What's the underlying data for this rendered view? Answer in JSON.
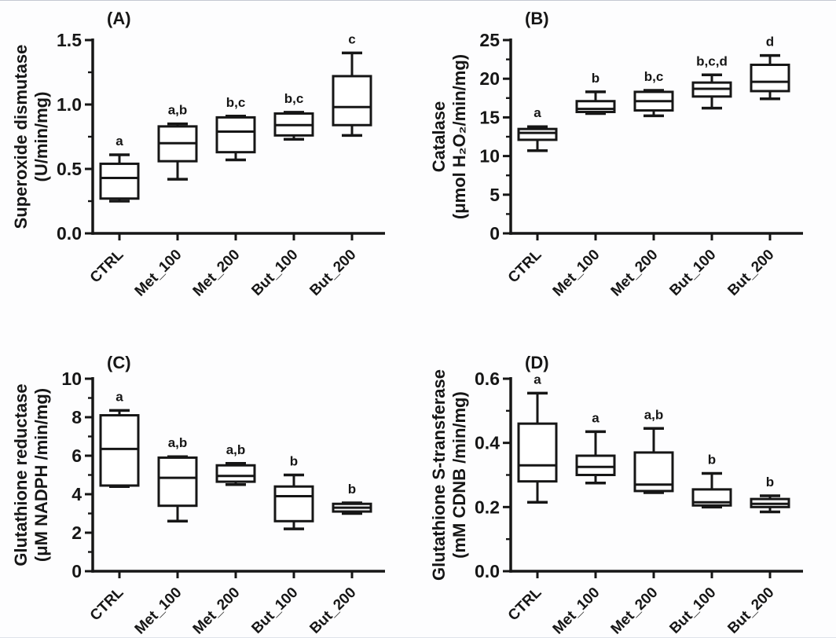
{
  "figure": {
    "background": "#fdfdfe",
    "ink_color": "#161616",
    "description": "Four-panel box plot figure of antioxidant enzyme activities"
  },
  "chart_data": [
    {
      "type": "box",
      "panel_label": "(A)",
      "ylabel_line1": "Superoxide dismutase",
      "ylabel_line2": "(U/min/mg)",
      "ylim": [
        0,
        1.5
      ],
      "yticks": [
        0,
        0.5,
        1.0,
        1.5
      ],
      "ytick_labels": [
        "0.0",
        "0.5",
        "1.0",
        "1.5"
      ],
      "minor_step": 0.25,
      "categories": [
        "CTRL",
        "Met_100",
        "Met_200",
        "But_100",
        "But_200"
      ],
      "series": [
        {
          "category": "CTRL",
          "min": 0.25,
          "q1": 0.27,
          "median": 0.43,
          "q3": 0.54,
          "max": 0.61,
          "sig": "a"
        },
        {
          "category": "Met_100",
          "min": 0.42,
          "q1": 0.56,
          "median": 0.7,
          "q3": 0.83,
          "max": 0.85,
          "sig": "a,b"
        },
        {
          "category": "Met_200",
          "min": 0.57,
          "q1": 0.63,
          "median": 0.79,
          "q3": 0.9,
          "max": 0.91,
          "sig": "b,c"
        },
        {
          "category": "But_100",
          "min": 0.73,
          "q1": 0.76,
          "median": 0.84,
          "q3": 0.93,
          "max": 0.94,
          "sig": "b,c"
        },
        {
          "category": "But_200",
          "min": 0.76,
          "q1": 0.84,
          "median": 0.98,
          "q3": 1.22,
          "max": 1.4,
          "sig": "c"
        }
      ]
    },
    {
      "type": "box",
      "panel_label": "(B)",
      "ylabel_line1": "Catalase",
      "ylabel_line2": "(μmol H₂O₂/min/mg)",
      "ylim": [
        0,
        25
      ],
      "yticks": [
        0,
        5,
        10,
        15,
        20,
        25
      ],
      "ytick_labels": [
        "0",
        "5",
        "10",
        "15",
        "20",
        "25"
      ],
      "minor_step": 2.5,
      "categories": [
        "CTRL",
        "Met_100",
        "Met_200",
        "But_100",
        "But_200"
      ],
      "series": [
        {
          "category": "CTRL",
          "min": 10.7,
          "q1": 12.1,
          "median": 13.0,
          "q3": 13.5,
          "max": 13.8,
          "sig": "a"
        },
        {
          "category": "Met_100",
          "min": 15.5,
          "q1": 15.7,
          "median": 16.1,
          "q3": 17.1,
          "max": 18.3,
          "sig": "b"
        },
        {
          "category": "Met_200",
          "min": 15.2,
          "q1": 15.9,
          "median": 17.1,
          "q3": 18.3,
          "max": 18.5,
          "sig": "b,c"
        },
        {
          "category": "But_100",
          "min": 16.2,
          "q1": 17.7,
          "median": 18.7,
          "q3": 19.5,
          "max": 20.5,
          "sig": "b,c,d"
        },
        {
          "category": "But_200",
          "min": 17.4,
          "q1": 18.4,
          "median": 19.6,
          "q3": 21.8,
          "max": 23.0,
          "sig": "d"
        }
      ]
    },
    {
      "type": "box",
      "panel_label": "(C)",
      "ylabel_line1": "Glutathione reductase",
      "ylabel_line2": "(μM NADPH /min/mg)",
      "ylim": [
        0,
        10
      ],
      "yticks": [
        0,
        2,
        4,
        6,
        8,
        10
      ],
      "ytick_labels": [
        "0",
        "2",
        "4",
        "6",
        "8",
        "10"
      ],
      "minor_step": 1,
      "categories": [
        "CTRL",
        "Met_100",
        "Met_200",
        "But_100",
        "But_200"
      ],
      "series": [
        {
          "category": "CTRL",
          "min": 4.4,
          "q1": 4.45,
          "median": 6.35,
          "q3": 8.1,
          "max": 8.35,
          "sig": "a"
        },
        {
          "category": "Met_100",
          "min": 2.6,
          "q1": 3.4,
          "median": 4.85,
          "q3": 5.9,
          "max": 5.95,
          "sig": "a,b"
        },
        {
          "category": "Met_200",
          "min": 4.5,
          "q1": 4.65,
          "median": 4.95,
          "q3": 5.5,
          "max": 5.6,
          "sig": "a,b"
        },
        {
          "category": "But_100",
          "min": 2.2,
          "q1": 2.6,
          "median": 3.9,
          "q3": 4.4,
          "max": 5.0,
          "sig": "b"
        },
        {
          "category": "But_200",
          "min": 3.0,
          "q1": 3.1,
          "median": 3.3,
          "q3": 3.5,
          "max": 3.55,
          "sig": "b"
        }
      ]
    },
    {
      "type": "box",
      "panel_label": "(D)",
      "ylabel_line1": "Glutathione S-transferase",
      "ylabel_line2": "(mM CDNB /min/mg)",
      "ylim": [
        0,
        0.6
      ],
      "yticks": [
        0,
        0.2,
        0.4,
        0.6
      ],
      "ytick_labels": [
        "0.0",
        "0.2",
        "0.4",
        "0.6"
      ],
      "minor_step": 0.1,
      "categories": [
        "CTRL",
        "Met_100",
        "Met_200",
        "But_100",
        "But_200"
      ],
      "series": [
        {
          "category": "CTRL",
          "min": 0.215,
          "q1": 0.28,
          "median": 0.33,
          "q3": 0.46,
          "max": 0.555,
          "sig": "a"
        },
        {
          "category": "Met_100",
          "min": 0.275,
          "q1": 0.3,
          "median": 0.325,
          "q3": 0.36,
          "max": 0.435,
          "sig": "a"
        },
        {
          "category": "Met_200",
          "min": 0.245,
          "q1": 0.25,
          "median": 0.27,
          "q3": 0.37,
          "max": 0.445,
          "sig": "a,b"
        },
        {
          "category": "But_100",
          "min": 0.2,
          "q1": 0.205,
          "median": 0.215,
          "q3": 0.255,
          "max": 0.305,
          "sig": "b"
        },
        {
          "category": "But_200",
          "min": 0.185,
          "q1": 0.2,
          "median": 0.21,
          "q3": 0.225,
          "max": 0.235,
          "sig": "b"
        }
      ]
    }
  ]
}
